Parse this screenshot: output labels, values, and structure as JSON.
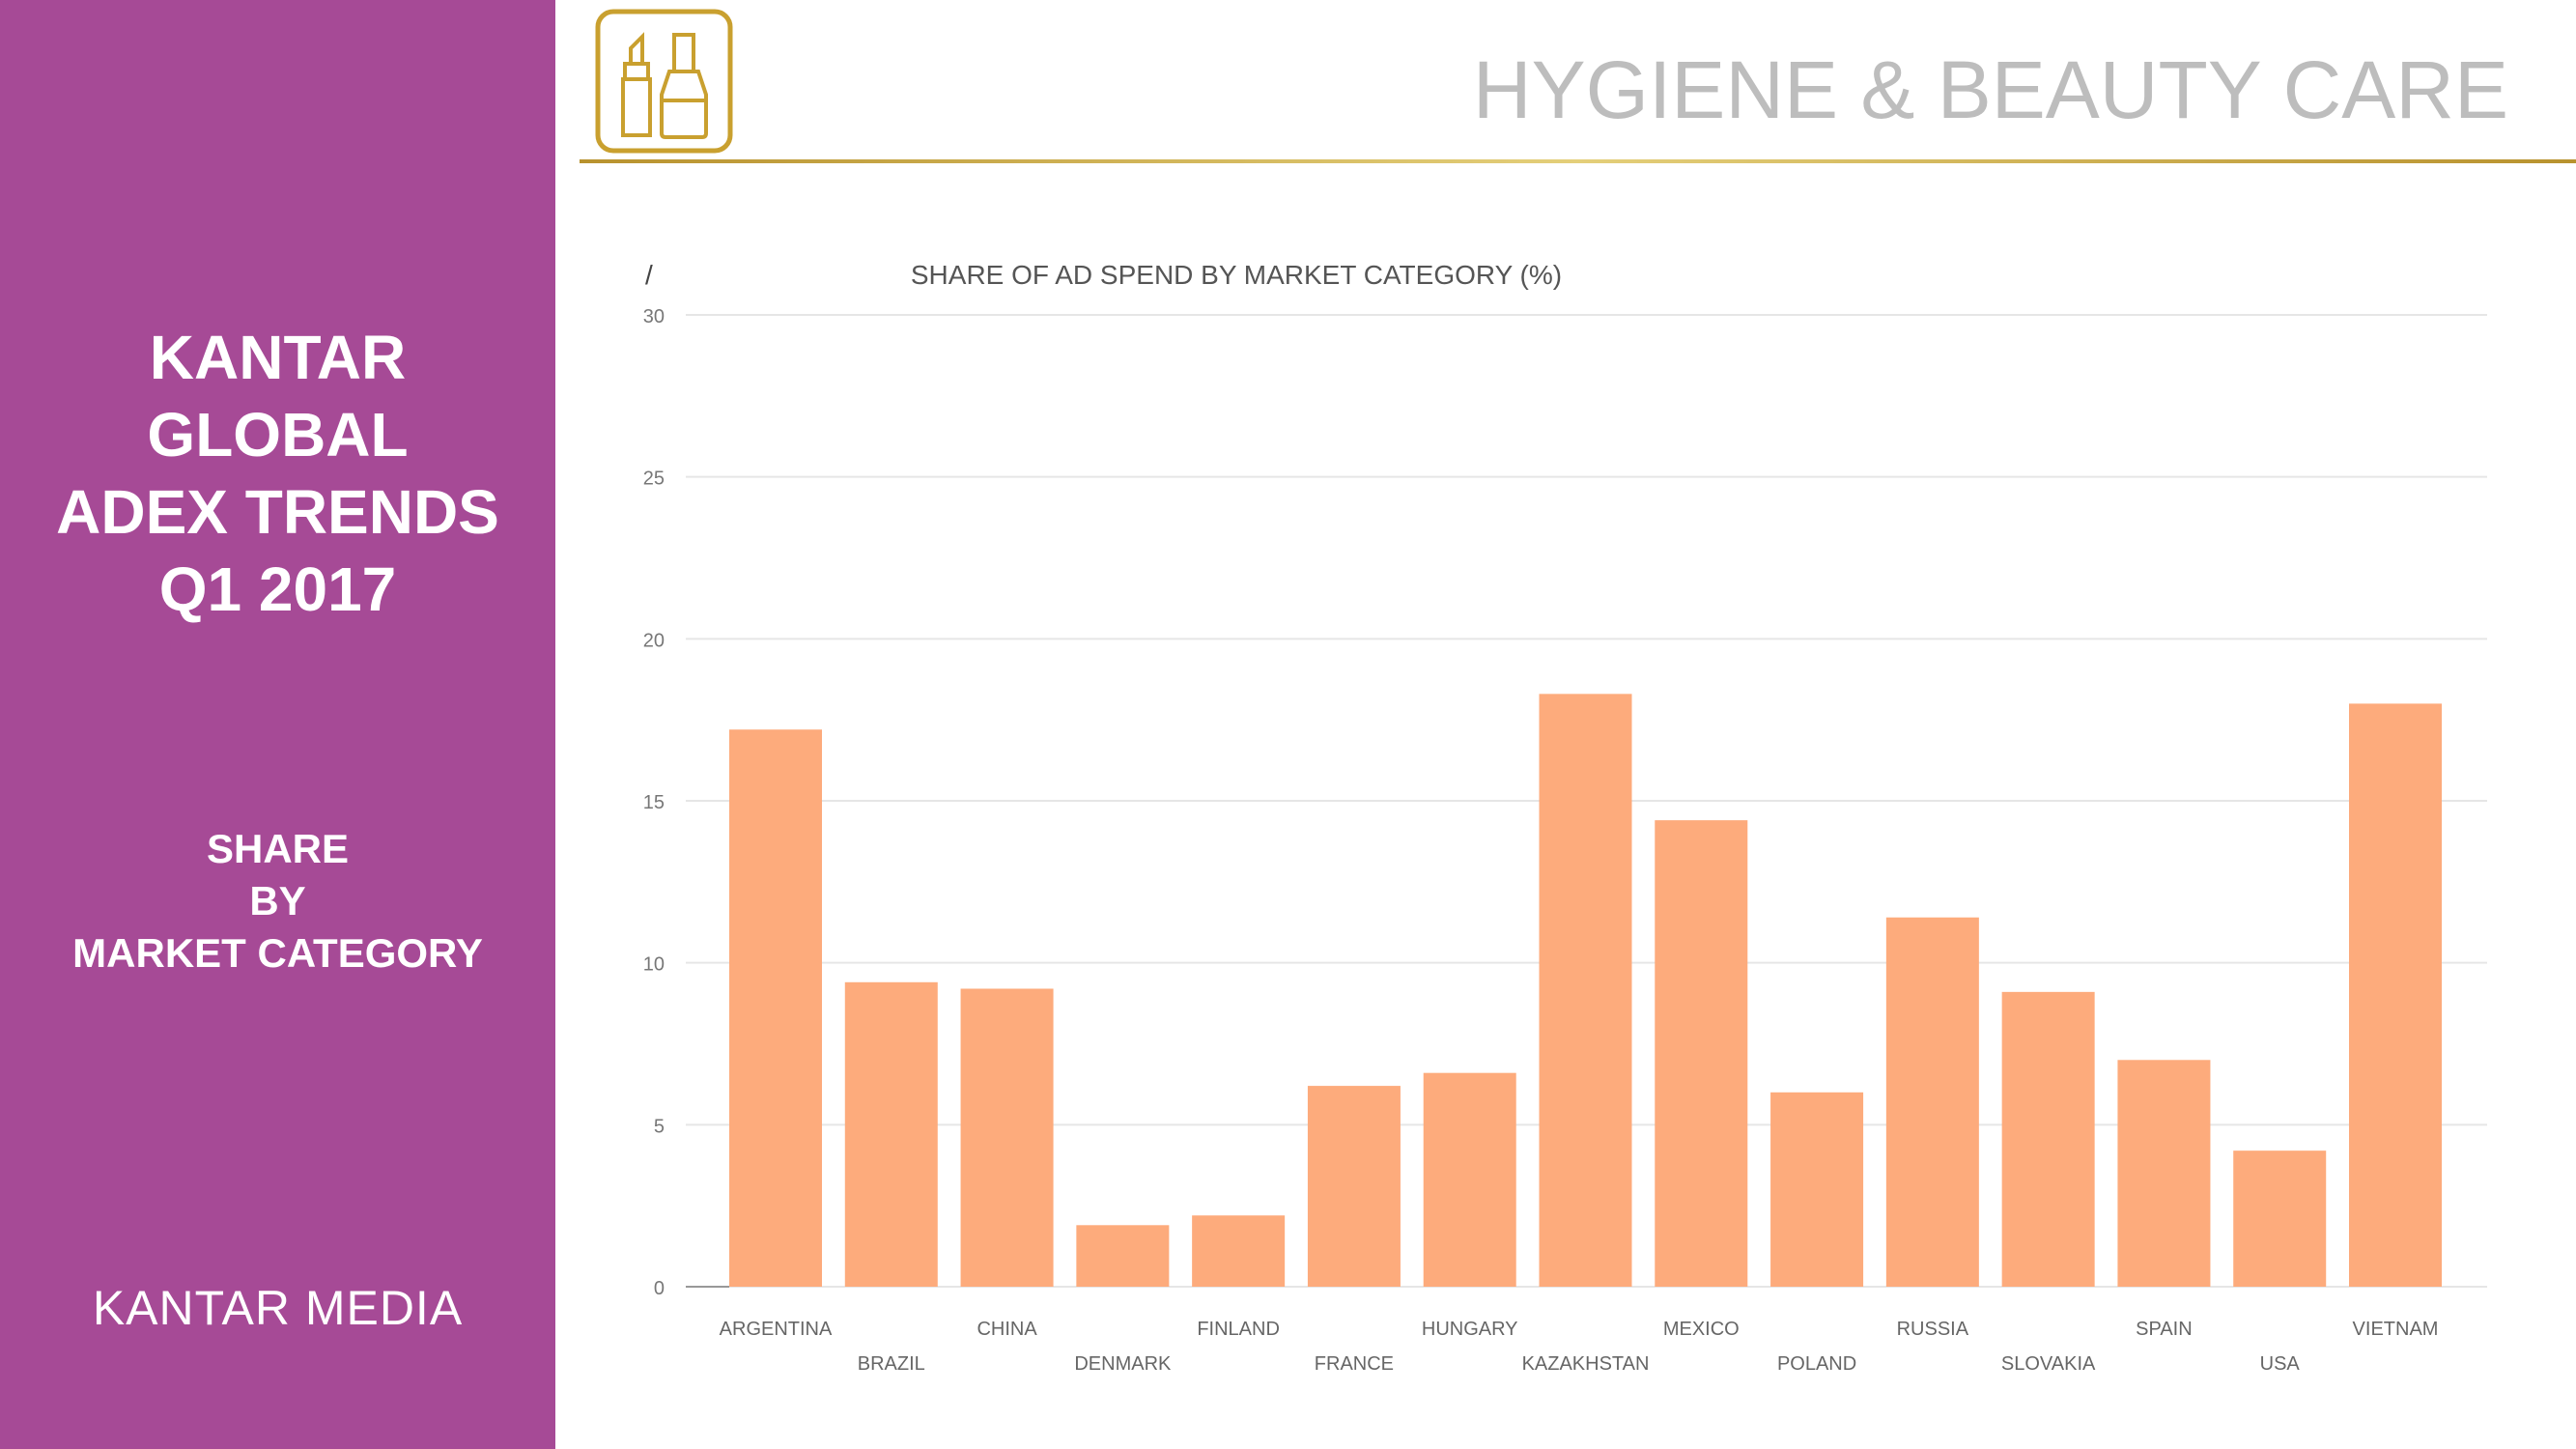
{
  "sidebar": {
    "title_lines": [
      "KANTAR",
      "GLOBAL",
      "ADEX TRENDS",
      "Q1 2017"
    ],
    "subtitle_lines": [
      "SHARE",
      "BY",
      "MARKET CATEGORY"
    ],
    "brand": "KANTAR MEDIA",
    "background_color": "#a64a96"
  },
  "header": {
    "icon": "lipstick-nail-polish-icon",
    "title": "HYGIENE & BEAUTY CARE"
  },
  "chart_data": {
    "type": "bar",
    "title": "SHARE OF AD SPEND BY MARKET CATEGORY (%)",
    "corner_mark": "/",
    "xlabel": "",
    "ylabel": "",
    "ylim": [
      0,
      30
    ],
    "yticks": [
      0,
      5,
      10,
      15,
      20,
      25,
      30
    ],
    "grid": true,
    "legend": "none",
    "bar_color": "#fdab7c",
    "categories": [
      "ARGENTINA",
      "BRAZIL",
      "CHINA",
      "DENMARK",
      "FINLAND",
      "FRANCE",
      "HUNGARY",
      "KAZAKHSTAN",
      "MEXICO",
      "POLAND",
      "RUSSIA",
      "SLOVAKIA",
      "SPAIN",
      "USA",
      "VIETNAM"
    ],
    "values": [
      17.2,
      9.4,
      9.2,
      1.9,
      2.2,
      6.2,
      6.6,
      18.3,
      14.4,
      6.0,
      11.4,
      9.1,
      7.0,
      4.2,
      18.0
    ]
  }
}
